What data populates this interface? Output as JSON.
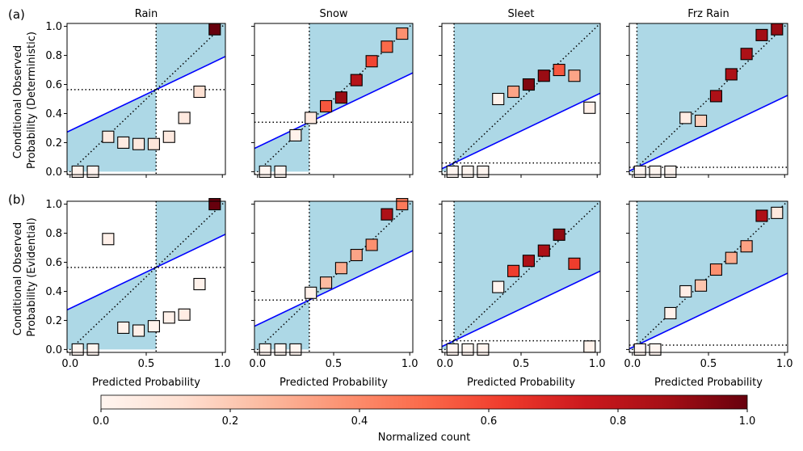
{
  "chart_data": {
    "type": "scatter",
    "panel_labels": [
      "(a)",
      "(b)"
    ],
    "row_ylabels": [
      [
        "Conditional Observed",
        "Probability (Deterministic)"
      ],
      [
        "Conditional Observed",
        "Probability (Evidential)"
      ]
    ],
    "column_titles": [
      "Rain",
      "Snow",
      "Sleet",
      "Frz Rain"
    ],
    "xlabel": "Predicted Probability",
    "xlim": [
      0,
      1
    ],
    "ylim": [
      0,
      1
    ],
    "x_ticks": [
      "0.0",
      "0.5",
      "1.0"
    ],
    "y_ticks": [
      "0.0",
      "0.2",
      "0.4",
      "0.6",
      "0.8",
      "1.0"
    ],
    "colorbar": {
      "label": "Normalized count",
      "ticks": [
        "0.0",
        "0.2",
        "0.4",
        "0.6",
        "0.8",
        "1.0"
      ],
      "colormap": "Reds"
    },
    "colors": {
      "skill_region": "#add8e6",
      "no_skill_line": "#0000ff",
      "reference_lines": "#000000"
    },
    "climatology": [
      0.565,
      0.34,
      0.06,
      0.03
    ],
    "panels": [
      [
        {
          "x": [
            0.05,
            0.15,
            0.25,
            0.35,
            0.45,
            0.55,
            0.65,
            0.75,
            0.85,
            0.95
          ],
          "y": [
            0.0,
            0.0,
            0.24,
            0.2,
            0.19,
            0.19,
            0.24,
            0.37,
            0.55,
            0.98
          ],
          "count": [
            0.02,
            0.01,
            0.07,
            0.06,
            0.07,
            0.09,
            0.07,
            0.07,
            0.12,
            1.0
          ]
        },
        {
          "x": [
            0.05,
            0.15,
            0.25,
            0.35,
            0.45,
            0.55,
            0.65,
            0.75,
            0.85,
            0.95
          ],
          "y": [
            0.0,
            0.0,
            0.25,
            0.37,
            0.45,
            0.51,
            0.63,
            0.76,
            0.86,
            0.95
          ],
          "count": [
            0.0,
            0.0,
            0.02,
            0.07,
            0.55,
            0.9,
            0.82,
            0.6,
            0.5,
            0.38
          ]
        },
        {
          "x": [
            0.05,
            0.15,
            0.25,
            0.35,
            0.45,
            0.55,
            0.65,
            0.75,
            0.85,
            0.95
          ],
          "y": [
            0.0,
            0.0,
            0.0,
            0.5,
            0.55,
            0.6,
            0.66,
            0.7,
            0.66,
            0.44
          ],
          "count": [
            0.0,
            0.0,
            0.0,
            0.02,
            0.32,
            0.95,
            0.9,
            0.55,
            0.32,
            0.03
          ]
        },
        {
          "x": [
            0.05,
            0.15,
            0.25,
            0.35,
            0.45,
            0.55,
            0.65,
            0.75,
            0.85,
            0.95
          ],
          "y": [
            0.0,
            0.0,
            0.0,
            0.37,
            0.35,
            0.52,
            0.67,
            0.81,
            0.94,
            0.98
          ],
          "count": [
            0.0,
            0.0,
            0.0,
            0.05,
            0.18,
            0.85,
            0.85,
            0.85,
            0.88,
            0.9
          ]
        }
      ],
      [
        {
          "x": [
            0.05,
            0.15,
            0.25,
            0.35,
            0.45,
            0.55,
            0.65,
            0.75,
            0.85,
            0.95
          ],
          "y": [
            0.0,
            0.0,
            0.76,
            0.15,
            0.13,
            0.16,
            0.22,
            0.24,
            0.45,
            1.0
          ],
          "count": [
            0.0,
            0.0,
            0.03,
            0.02,
            0.03,
            0.02,
            0.03,
            0.05,
            0.02,
            1.0
          ]
        },
        {
          "x": [
            0.05,
            0.15,
            0.25,
            0.35,
            0.45,
            0.55,
            0.65,
            0.75,
            0.85,
            0.95
          ],
          "y": [
            0.0,
            0.0,
            0.0,
            0.39,
            0.46,
            0.56,
            0.65,
            0.72,
            0.93,
            1.0
          ],
          "count": [
            0.0,
            0.0,
            0.0,
            0.03,
            0.25,
            0.3,
            0.32,
            0.38,
            0.85,
            0.45
          ]
        },
        {
          "x": [
            0.05,
            0.15,
            0.25,
            0.35,
            0.45,
            0.55,
            0.65,
            0.75,
            0.85,
            0.95
          ],
          "y": [
            0.0,
            0.0,
            0.0,
            0.43,
            0.54,
            0.61,
            0.68,
            0.79,
            0.59,
            0.02
          ],
          "count": [
            0.0,
            0.0,
            0.0,
            0.01,
            0.62,
            0.85,
            0.85,
            0.92,
            0.62,
            0.02
          ]
        },
        {
          "x": [
            0.05,
            0.15,
            0.25,
            0.35,
            0.45,
            0.55,
            0.65,
            0.75,
            0.85,
            0.95
          ],
          "y": [
            0.0,
            0.0,
            0.25,
            0.4,
            0.44,
            0.55,
            0.63,
            0.71,
            0.92,
            0.94
          ],
          "count": [
            0.0,
            0.0,
            0.02,
            0.04,
            0.22,
            0.38,
            0.3,
            0.33,
            0.85,
            0.08
          ]
        }
      ]
    ]
  }
}
